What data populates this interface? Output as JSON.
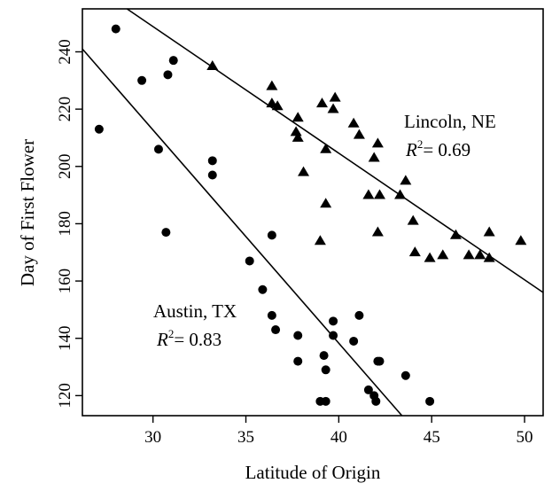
{
  "chart_data": {
    "type": "scatter",
    "xlabel": "Latitude of Origin",
    "ylabel": "Day of First Flower",
    "xlim": [
      26.2,
      51
    ],
    "ylim": [
      113,
      255
    ],
    "xticks": [
      30,
      35,
      40,
      45,
      50
    ],
    "yticks": [
      120,
      140,
      160,
      180,
      200,
      220,
      240
    ],
    "grid": false,
    "legend": "none",
    "series": [
      {
        "marker": "circle",
        "points": [
          [
            27.1,
            213
          ],
          [
            28.0,
            248
          ],
          [
            29.4,
            230
          ],
          [
            30.3,
            206
          ],
          [
            30.7,
            177
          ],
          [
            30.8,
            232
          ],
          [
            31.1,
            237
          ],
          [
            33.2,
            202
          ],
          [
            33.2,
            197
          ],
          [
            35.2,
            167
          ],
          [
            35.9,
            157
          ],
          [
            36.4,
            176
          ],
          [
            36.4,
            148
          ],
          [
            36.6,
            143
          ],
          [
            37.8,
            141
          ],
          [
            37.8,
            132
          ],
          [
            39.0,
            118
          ],
          [
            39.2,
            134
          ],
          [
            39.3,
            118
          ],
          [
            39.3,
            129
          ],
          [
            39.7,
            146
          ],
          [
            39.7,
            141
          ],
          [
            40.8,
            139
          ],
          [
            41.1,
            148
          ],
          [
            41.6,
            122
          ],
          [
            41.9,
            120
          ],
          [
            42.0,
            118
          ],
          [
            42.1,
            132
          ],
          [
            42.2,
            132
          ],
          [
            43.6,
            127
          ],
          [
            44.9,
            118
          ]
        ],
        "fit": {
          "x": [
            26.2,
            43.4
          ],
          "y": [
            241,
            113
          ]
        }
      },
      {
        "marker": "triangle",
        "points": [
          [
            33.2,
            235
          ],
          [
            36.4,
            228
          ],
          [
            36.4,
            222
          ],
          [
            36.7,
            221
          ],
          [
            37.8,
            217
          ],
          [
            37.7,
            212
          ],
          [
            37.8,
            210
          ],
          [
            38.1,
            198
          ],
          [
            39.1,
            222
          ],
          [
            39.0,
            174
          ],
          [
            39.3,
            187
          ],
          [
            39.3,
            206
          ],
          [
            39.7,
            220
          ],
          [
            39.8,
            224
          ],
          [
            40.8,
            215
          ],
          [
            41.1,
            211
          ],
          [
            41.6,
            190
          ],
          [
            41.9,
            203
          ],
          [
            42.1,
            177
          ],
          [
            42.1,
            208
          ],
          [
            42.2,
            190
          ],
          [
            43.3,
            190
          ],
          [
            43.6,
            195
          ],
          [
            44.0,
            181
          ],
          [
            44.1,
            170
          ],
          [
            44.9,
            168
          ],
          [
            45.6,
            169
          ],
          [
            46.3,
            176
          ],
          [
            47.0,
            169
          ],
          [
            47.6,
            169
          ],
          [
            48.1,
            177
          ],
          [
            48.1,
            168
          ],
          [
            49.8,
            174
          ]
        ],
        "fit": {
          "x": [
            28.6,
            51
          ],
          "y": [
            255,
            156
          ]
        }
      }
    ],
    "annotations": [
      {
        "line1": "Lincoln, NE",
        "r2_symbol": "R",
        "r2_exp": "2",
        "r2_value": "= 0.69"
      },
      {
        "line1": "Austin, TX",
        "r2_symbol": "R",
        "r2_exp": "2",
        "r2_value": "= 0.83"
      }
    ]
  }
}
